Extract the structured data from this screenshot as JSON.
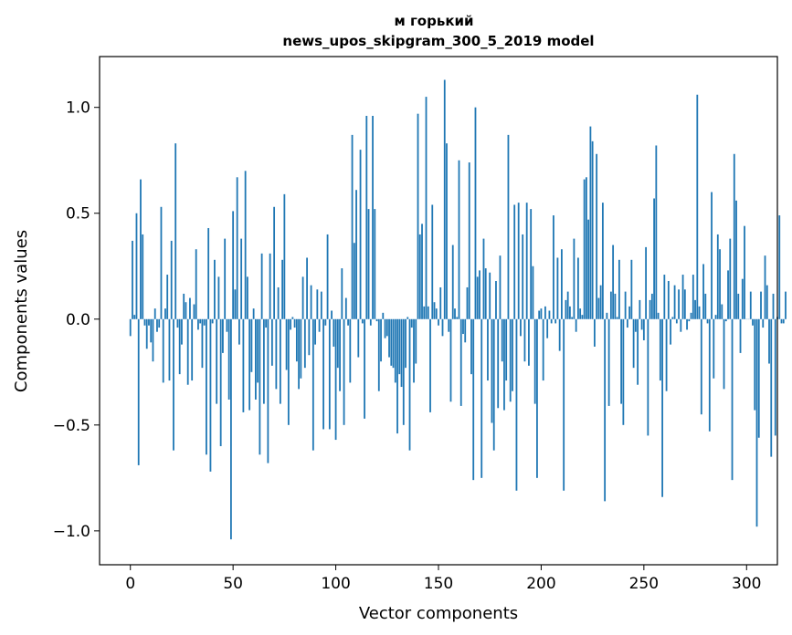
{
  "chart_data": {
    "type": "bar",
    "title_line1": "м горький",
    "title_line2": "news_upos_skipgram_300_5_2019 model",
    "xlabel": "Vector components",
    "ylabel": "Components values",
    "xlim": [
      -15,
      315
    ],
    "ylim": [
      -1.16,
      1.24
    ],
    "xticks": [
      0,
      50,
      100,
      150,
      200,
      250,
      300
    ],
    "xtick_labels": [
      "0",
      "50",
      "100",
      "150",
      "200",
      "250",
      "300"
    ],
    "yticks": [
      -1.0,
      -0.5,
      0.0,
      0.5,
      1.0
    ],
    "ytick_labels": [
      "−1.0",
      "−0.5",
      "0.0",
      "0.5",
      "1.0"
    ],
    "grid": false,
    "bar_color": "#1f77b4",
    "values": [
      -0.08,
      0.37,
      0.02,
      0.5,
      -0.69,
      0.66,
      0.4,
      -0.03,
      -0.14,
      -0.03,
      -0.11,
      -0.2,
      0.05,
      -0.06,
      -0.04,
      0.53,
      -0.3,
      0.05,
      0.21,
      -0.29,
      0.37,
      -0.62,
      0.83,
      -0.04,
      -0.26,
      -0.12,
      0.12,
      0.08,
      -0.31,
      0.1,
      -0.29,
      0.07,
      0.33,
      -0.05,
      -0.02,
      -0.23,
      -0.03,
      -0.64,
      0.43,
      -0.72,
      -0.02,
      0.28,
      -0.4,
      0.2,
      -0.6,
      -0.16,
      0.38,
      -0.06,
      -0.38,
      -1.04,
      0.51,
      0.14,
      0.67,
      -0.12,
      0.38,
      -0.44,
      0.7,
      0.2,
      -0.43,
      -0.25,
      0.05,
      -0.38,
      -0.3,
      -0.64,
      0.31,
      -0.4,
      -0.04,
      -0.68,
      0.31,
      -0.22,
      0.53,
      -0.33,
      0.15,
      -0.4,
      0.28,
      0.59,
      -0.24,
      -0.5,
      -0.05,
      0.01,
      -0.04,
      -0.2,
      -0.33,
      -0.28,
      0.2,
      -0.23,
      0.29,
      -0.17,
      0.16,
      -0.62,
      -0.12,
      0.14,
      -0.06,
      0.13,
      -0.52,
      -0.03,
      0.4,
      -0.52,
      0.04,
      -0.13,
      -0.57,
      -0.23,
      -0.34,
      0.24,
      -0.5,
      0.1,
      -0.03,
      -0.3,
      0.87,
      0.36,
      0.61,
      -0.18,
      0.8,
      -0.02,
      -0.47,
      0.96,
      0.52,
      -0.03,
      0.96,
      0.52,
      -0.01,
      -0.34,
      -0.2,
      0.03,
      -0.09,
      -0.08,
      -0.18,
      -0.22,
      -0.23,
      -0.3,
      -0.54,
      -0.26,
      -0.32,
      -0.5,
      -0.23,
      0.01,
      -0.62,
      -0.04,
      -0.3,
      -0.21,
      0.97,
      0.4,
      0.45,
      0.06,
      1.05,
      0.06,
      -0.44,
      0.54,
      0.08,
      0.05,
      -0.03,
      0.15,
      -0.08,
      1.13,
      0.83,
      -0.06,
      -0.39,
      0.35,
      0.05,
      0.01,
      0.75,
      -0.41,
      -0.07,
      -0.11,
      0.15,
      0.74,
      -0.26,
      -0.76,
      1.0,
      0.2,
      0.23,
      -0.75,
      0.38,
      0.24,
      -0.29,
      0.22,
      -0.49,
      -0.62,
      0.18,
      -0.42,
      0.3,
      -0.2,
      -0.43,
      -0.29,
      0.87,
      -0.39,
      -0.34,
      0.54,
      -0.81,
      0.55,
      -0.08,
      0.4,
      -0.2,
      0.55,
      -0.22,
      0.52,
      0.25,
      -0.4,
      -0.75,
      0.04,
      0.05,
      -0.29,
      0.06,
      -0.09,
      0.04,
      -0.02,
      0.49,
      -0.02,
      0.29,
      -0.15,
      0.33,
      -0.81,
      0.09,
      0.13,
      0.06,
      0.01,
      0.38,
      -0.06,
      0.29,
      0.05,
      0.02,
      0.66,
      0.67,
      0.47,
      0.91,
      0.84,
      -0.13,
      0.78,
      0.1,
      0.16,
      0.55,
      -0.86,
      0.03,
      -0.41,
      0.13,
      0.35,
      0.12,
      0.01,
      0.28,
      -0.4,
      -0.5,
      0.13,
      -0.04,
      0.06,
      0.28,
      -0.23,
      -0.06,
      -0.31,
      0.09,
      -0.05,
      -0.1,
      0.34,
      -0.55,
      0.09,
      0.12,
      0.57,
      0.82,
      0.03,
      -0.29,
      -0.84,
      0.21,
      -0.34,
      0.18,
      -0.12,
      0.01,
      0.16,
      -0.02,
      0.14,
      -0.06,
      0.21,
      0.14,
      -0.05,
      -0.01,
      0.03,
      0.21,
      0.09,
      1.06,
      0.06,
      -0.45,
      0.26,
      0.12,
      -0.02,
      -0.53,
      0.6,
      -0.28,
      0.02,
      0.4,
      0.33,
      0.07,
      -0.33,
      -0.01,
      0.23,
      0.38,
      -0.76,
      0.78,
      0.56,
      0.12,
      -0.16,
      0.19,
      0.44,
      0.0,
      0.0,
      0.13,
      -0.03,
      -0.43,
      -0.98,
      -0.56,
      0.13,
      -0.04,
      0.3,
      0.16,
      -0.21,
      -0.65,
      0.12,
      -0.55,
      0.01,
      0.49,
      -0.02,
      -0.02,
      0.13
    ]
  }
}
